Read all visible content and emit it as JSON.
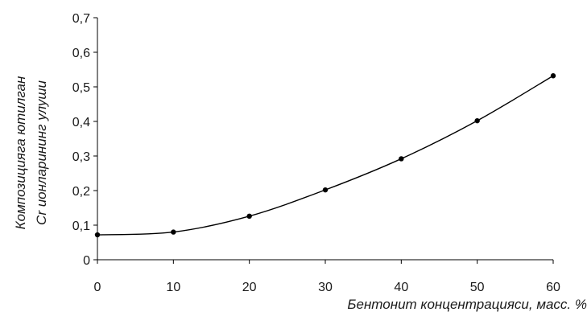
{
  "chart_data": {
    "type": "line",
    "title": "",
    "xlabel": "Бентонит концентрацияси, масс. %",
    "ylabel_lines": [
      "Композицияга ютилган",
      "Cr ионларининг улуши"
    ],
    "x": [
      0,
      10,
      20,
      30,
      40,
      50,
      60
    ],
    "series": [
      {
        "values": [
          0.072,
          0.08,
          0.126,
          0.202,
          0.292,
          0.402,
          0.532
        ]
      }
    ],
    "xlim": [
      0,
      60
    ],
    "ylim": [
      0,
      0.7
    ],
    "x_ticks": [
      "0",
      "10",
      "20",
      "30",
      "40",
      "50",
      "60"
    ],
    "y_ticks": [
      "0",
      "0,1",
      "0,2",
      "0,3",
      "0,4",
      "0,5",
      "0,6",
      "0,7"
    ],
    "y_tick_values": [
      0,
      0.1,
      0.2,
      0.3,
      0.4,
      0.5,
      0.6,
      0.7
    ],
    "grid": false,
    "legend": "none",
    "smooth": true,
    "line_color": "#000000",
    "marker": "circle"
  }
}
